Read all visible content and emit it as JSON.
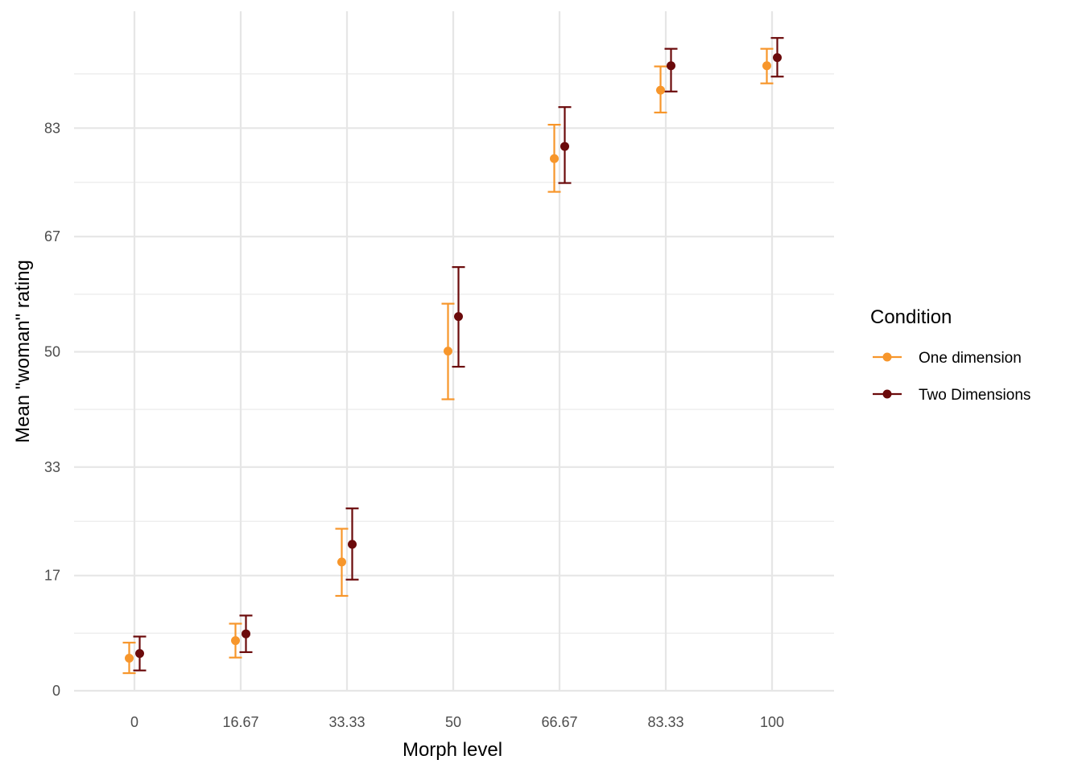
{
  "chart_data": {
    "type": "scatter",
    "xlabel": "Morph level",
    "ylabel": "Mean \"woman\" rating",
    "categories": [
      "0",
      "16.67",
      "33.33",
      "50",
      "66.67",
      "83.33",
      "100"
    ],
    "y_ticks": [
      0,
      17,
      33,
      50,
      67,
      83
    ],
    "y_tick_labels": [
      "0",
      "17",
      "33",
      "50",
      "67",
      "83"
    ],
    "ylim": [
      0,
      100
    ],
    "grid": true,
    "legend": {
      "title": "Condition",
      "position": "right"
    },
    "series": [
      {
        "name": "One dimension",
        "color": "#F7962B",
        "values": [
          4.8,
          7.4,
          19.0,
          50.1,
          78.5,
          88.6,
          92.2
        ],
        "lower": [
          2.6,
          4.9,
          14.0,
          43.0,
          73.6,
          85.3,
          89.6
        ],
        "upper": [
          7.1,
          9.9,
          23.9,
          57.1,
          83.5,
          92.1,
          94.7
        ]
      },
      {
        "name": "Two Dimensions",
        "color": "#6B0A0B",
        "values": [
          5.5,
          8.4,
          21.6,
          55.2,
          80.3,
          92.2,
          93.4
        ],
        "lower": [
          3.0,
          5.7,
          16.4,
          47.8,
          74.9,
          88.4,
          90.6
        ],
        "upper": [
          8.0,
          11.1,
          26.9,
          62.5,
          86.1,
          94.7,
          96.3
        ]
      }
    ]
  }
}
